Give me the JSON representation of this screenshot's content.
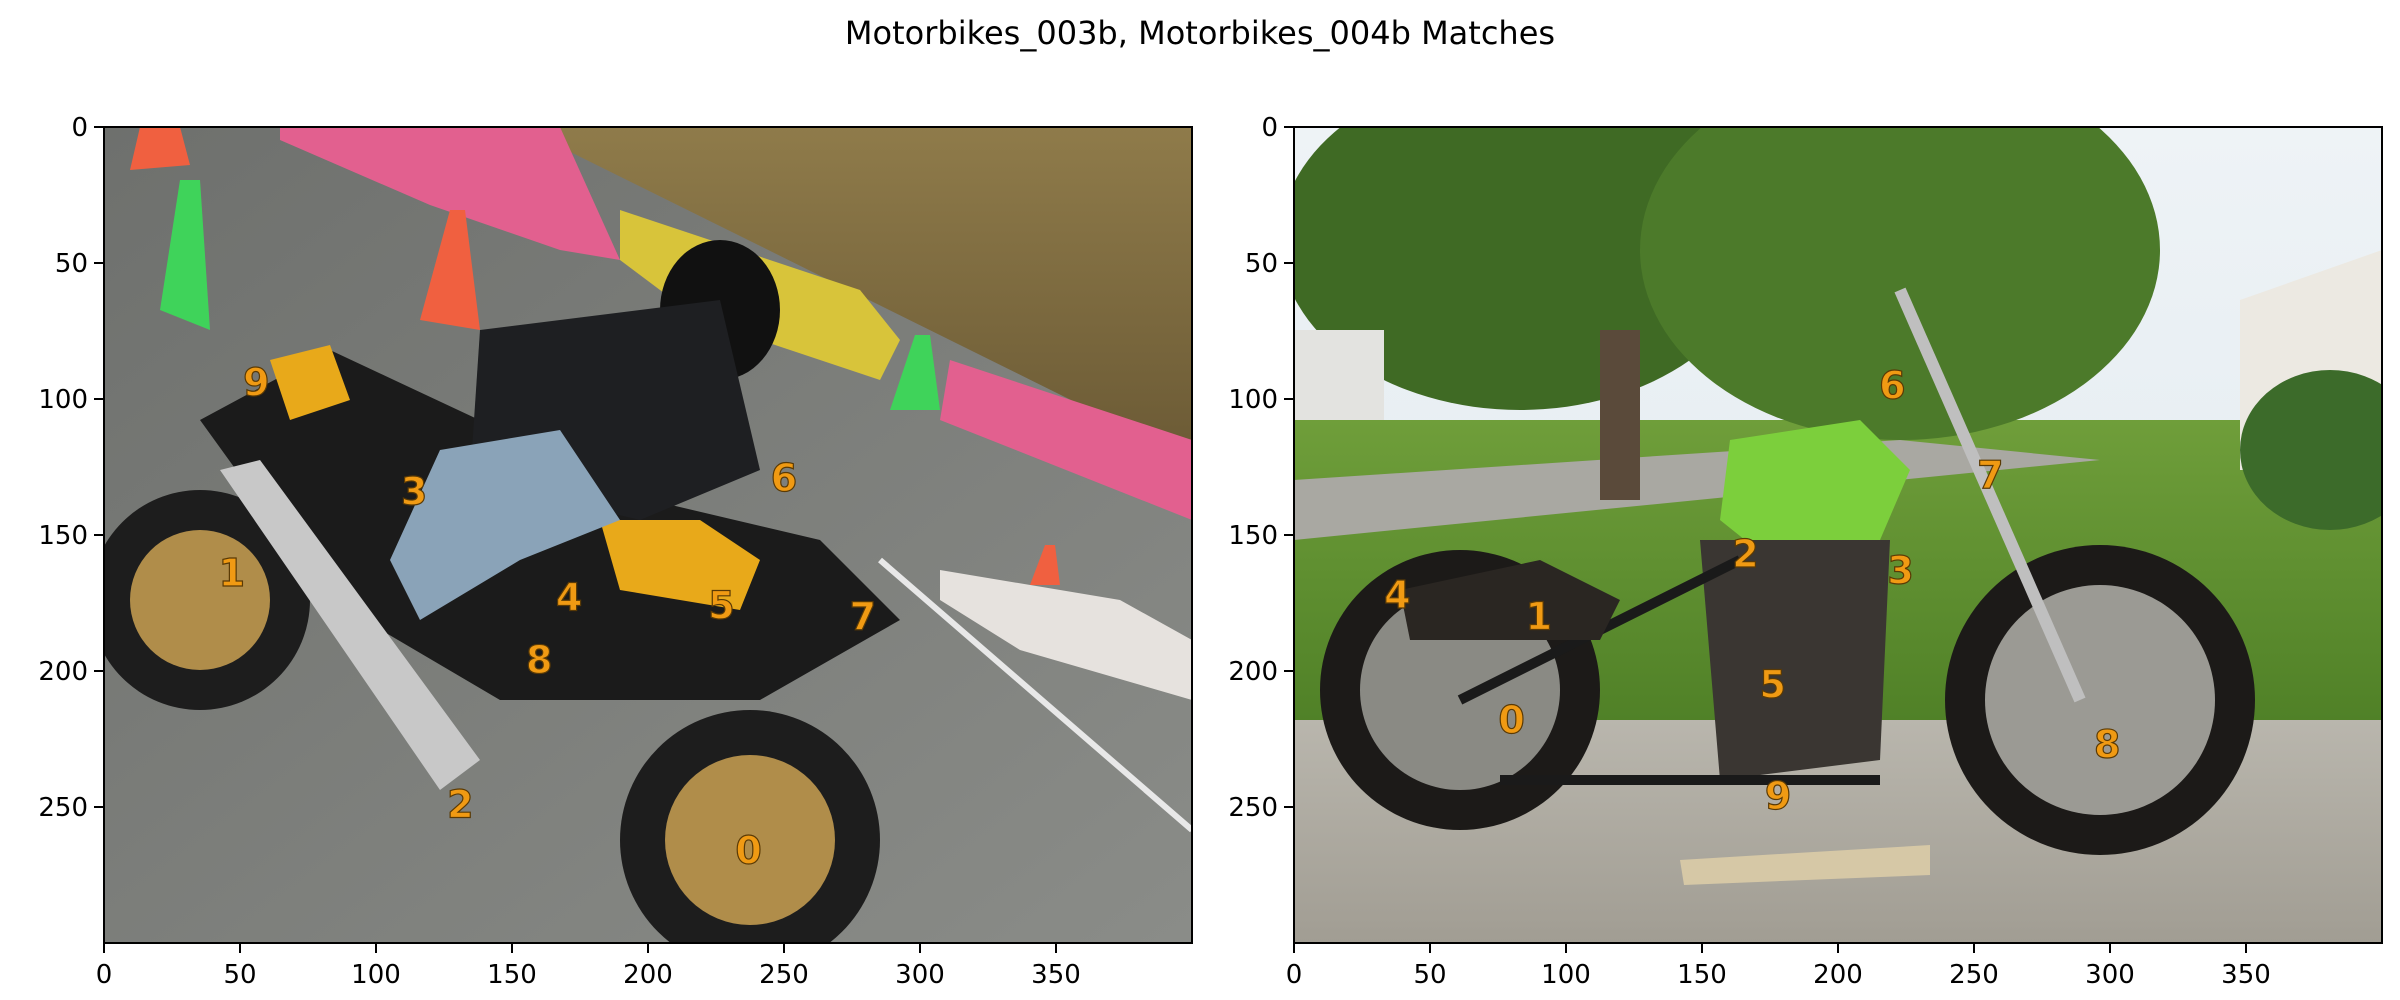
{
  "title": "Motorbikes_003b, Motorbikes_004b Matches",
  "panels": [
    {
      "name": "motorbikes-003b",
      "xticks": [
        0,
        50,
        100,
        150,
        200,
        250,
        300,
        350
      ],
      "yticks": [
        0,
        50,
        100,
        150,
        200,
        250
      ],
      "xlim": [
        0,
        400
      ],
      "ylim": [
        300,
        0
      ],
      "points": [
        {
          "label": "0",
          "x": 237,
          "y": 266
        },
        {
          "label": "1",
          "x": 47,
          "y": 164
        },
        {
          "label": "2",
          "x": 131,
          "y": 249
        },
        {
          "label": "3",
          "x": 114,
          "y": 134
        },
        {
          "label": "4",
          "x": 171,
          "y": 173
        },
        {
          "label": "5",
          "x": 227,
          "y": 176
        },
        {
          "label": "6",
          "x": 250,
          "y": 129
        },
        {
          "label": "7",
          "x": 279,
          "y": 180
        },
        {
          "label": "8",
          "x": 160,
          "y": 196
        },
        {
          "label": "9",
          "x": 56,
          "y": 94
        }
      ]
    },
    {
      "name": "motorbikes-004b",
      "xticks": [
        0,
        50,
        100,
        150,
        200,
        250,
        300,
        350
      ],
      "yticks": [
        0,
        50,
        100,
        150,
        200,
        250
      ],
      "xlim": [
        0,
        400
      ],
      "ylim": [
        300,
        0
      ],
      "points": [
        {
          "label": "0",
          "x": 80,
          "y": 218
        },
        {
          "label": "1",
          "x": 90,
          "y": 180
        },
        {
          "label": "2",
          "x": 166,
          "y": 157
        },
        {
          "label": "3",
          "x": 223,
          "y": 163
        },
        {
          "label": "4",
          "x": 38,
          "y": 172
        },
        {
          "label": "5",
          "x": 176,
          "y": 205
        },
        {
          "label": "6",
          "x": 220,
          "y": 95
        },
        {
          "label": "7",
          "x": 256,
          "y": 128
        },
        {
          "label": "8",
          "x": 299,
          "y": 227
        },
        {
          "label": "9",
          "x": 178,
          "y": 246
        }
      ]
    }
  ],
  "colors": {
    "label": "#f09a13",
    "frame": "#000000",
    "tick_text": "#000000"
  }
}
